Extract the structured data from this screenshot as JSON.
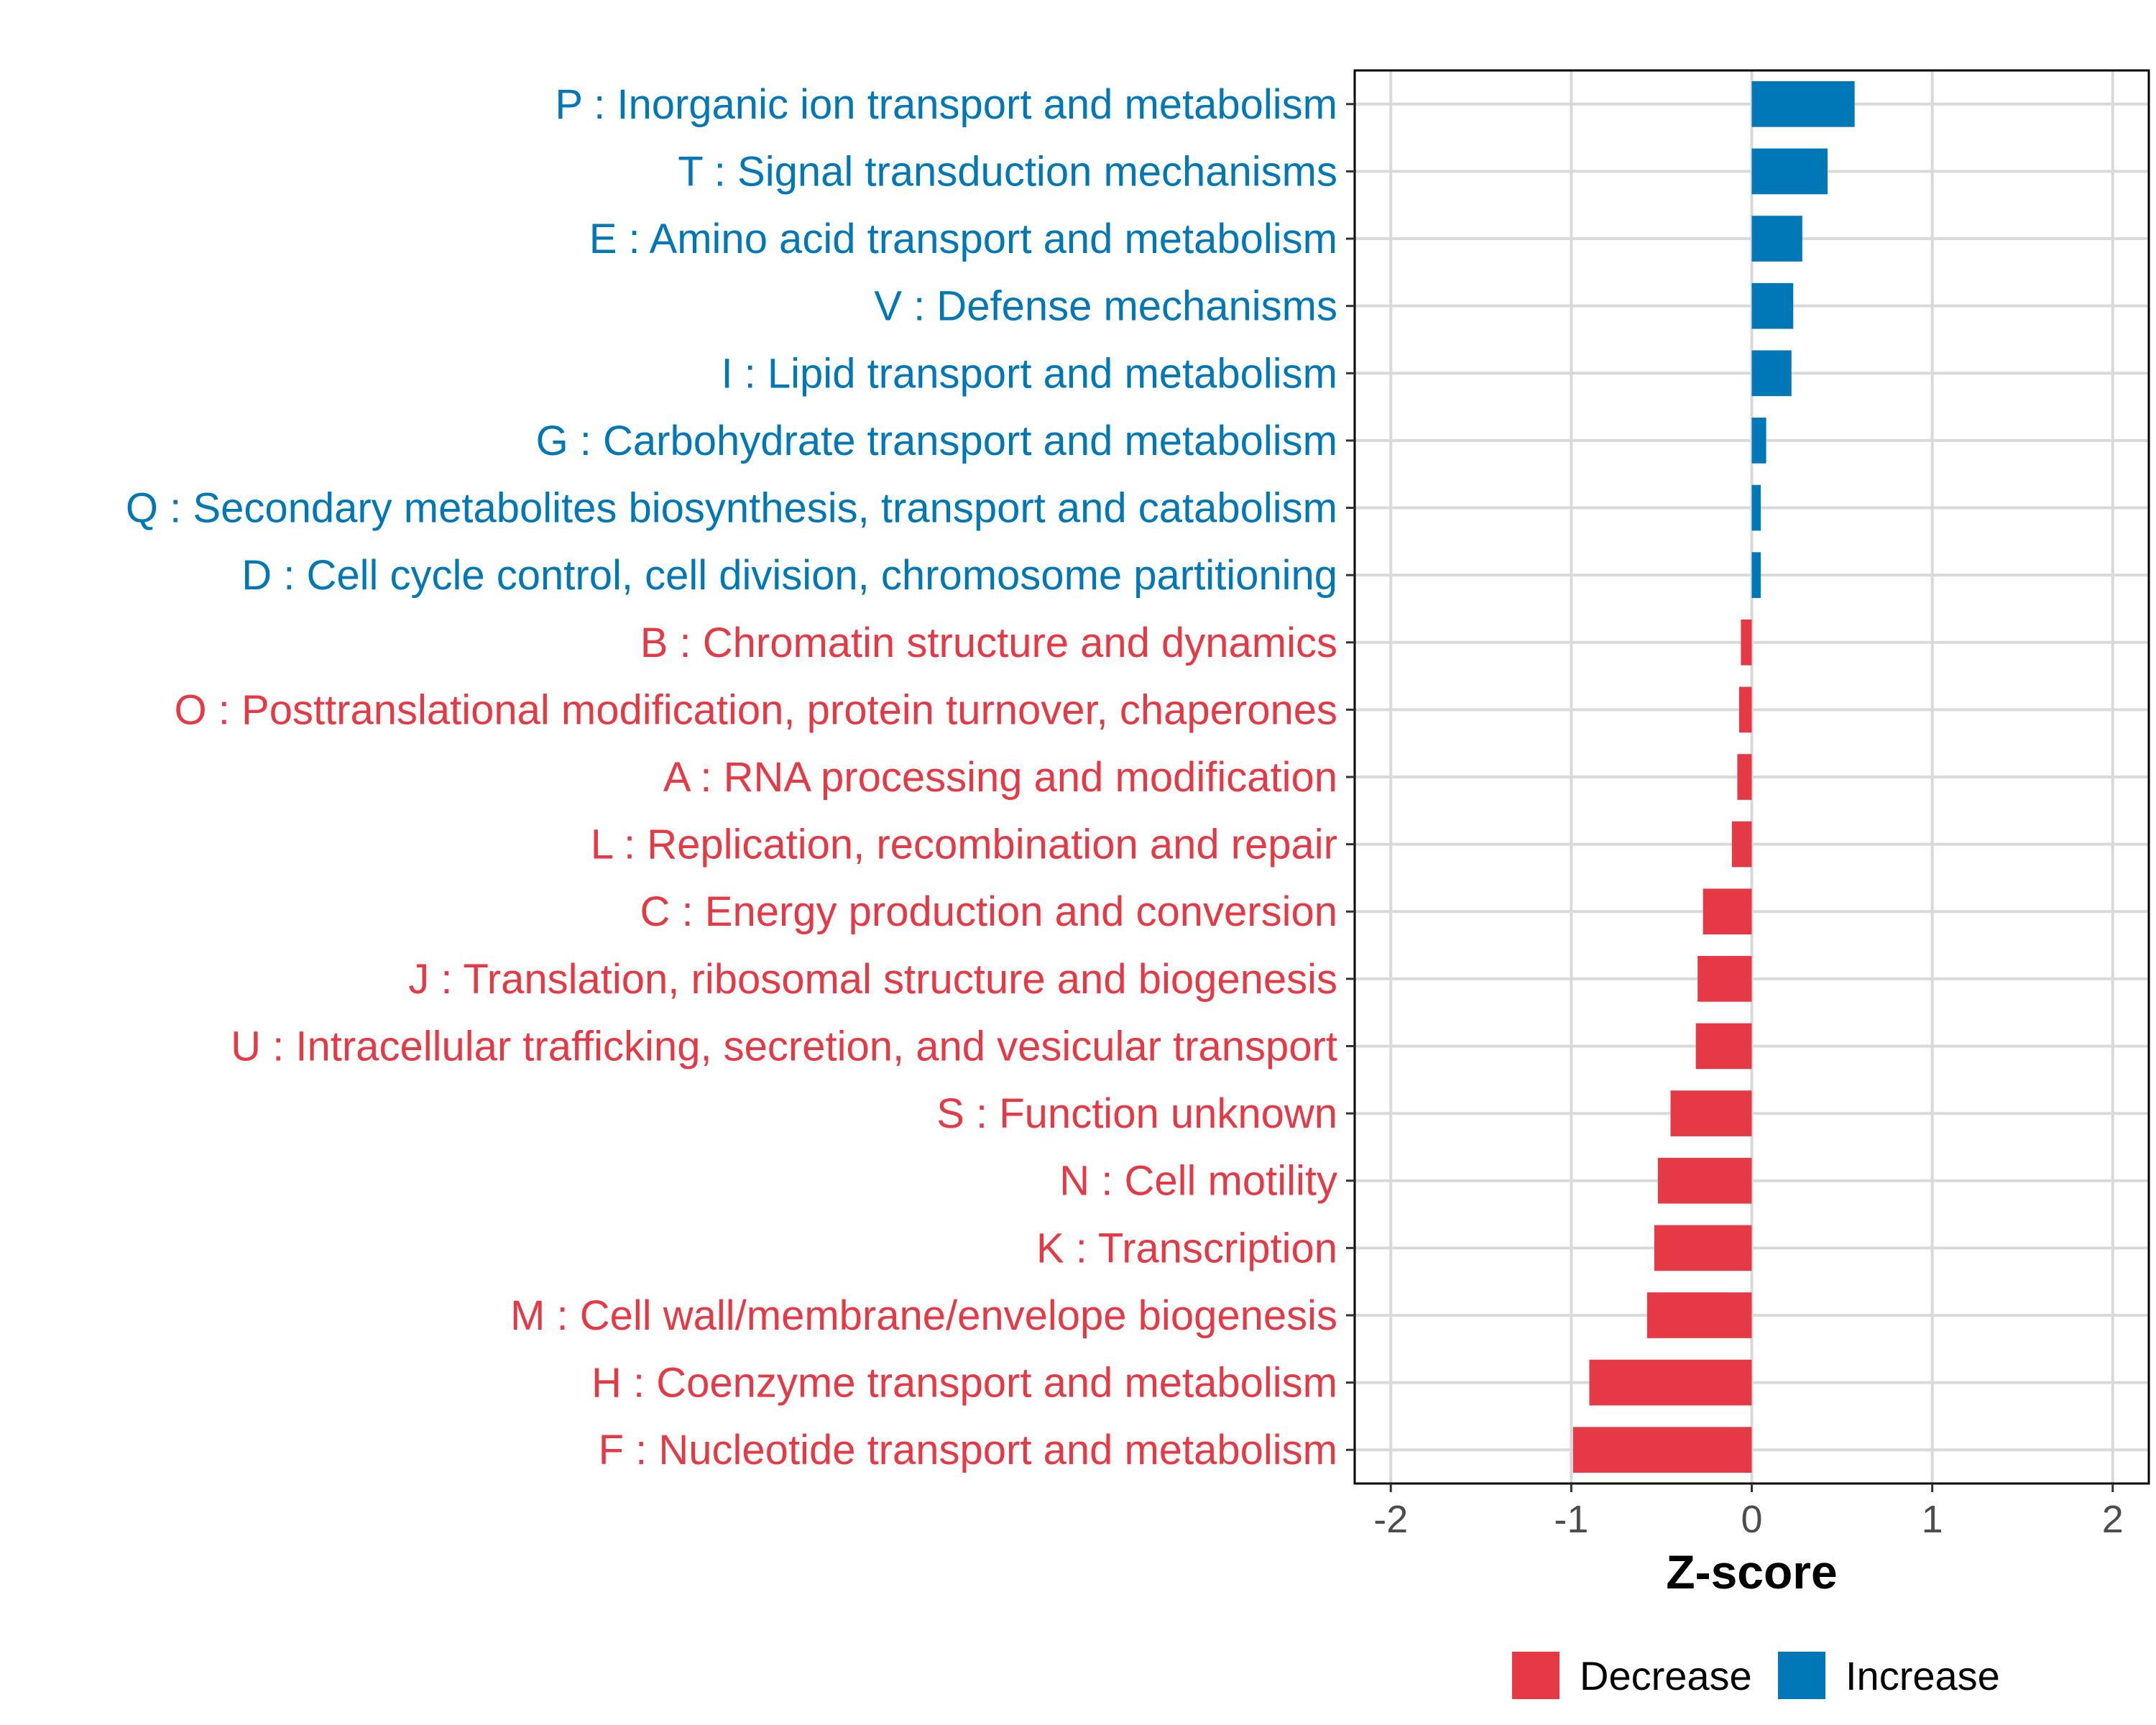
{
  "chart_data": {
    "type": "bar",
    "orientation": "horizontal",
    "xlabel": "Z-score",
    "xlim": [
      -2.2,
      2.2
    ],
    "xticks": [
      -2,
      -1,
      0,
      1,
      2
    ],
    "xtick_labels": [
      "-2",
      "-1",
      "0",
      "1",
      "2"
    ],
    "grid": true,
    "categories": [
      "P : Inorganic ion transport and metabolism",
      "T : Signal transduction mechanisms",
      "E : Amino acid transport and metabolism",
      "V : Defense mechanisms",
      "I : Lipid transport and metabolism",
      "G : Carbohydrate transport and metabolism",
      "Q : Secondary metabolites biosynthesis, transport and catabolism",
      "D : Cell cycle control, cell division, chromosome partitioning",
      "B : Chromatin structure and dynamics",
      "O : Posttranslational modification, protein turnover, chaperones",
      "A : RNA processing and modification",
      "L : Replication, recombination and repair",
      "C : Energy production and conversion",
      "J : Translation, ribosomal structure and biogenesis",
      "U : Intracellular trafficking, secretion, and vesicular transport",
      "S : Function unknown",
      "N : Cell motility",
      "K : Transcription",
      "M : Cell wall/membrane/envelope biogenesis",
      "H : Coenzyme transport and metabolism",
      "F : Nucleotide transport and metabolism"
    ],
    "values": [
      0.57,
      0.42,
      0.28,
      0.23,
      0.22,
      0.08,
      0.05,
      0.05,
      -0.06,
      -0.07,
      -0.08,
      -0.11,
      -0.27,
      -0.3,
      -0.31,
      -0.45,
      -0.52,
      -0.54,
      -0.58,
      -0.9,
      -0.99
    ],
    "groups": [
      "Increase",
      "Increase",
      "Increase",
      "Increase",
      "Increase",
      "Increase",
      "Increase",
      "Increase",
      "Decrease",
      "Decrease",
      "Decrease",
      "Decrease",
      "Decrease",
      "Decrease",
      "Decrease",
      "Decrease",
      "Decrease",
      "Decrease",
      "Decrease",
      "Decrease",
      "Decrease"
    ],
    "legend": {
      "position": "bottom",
      "entries": [
        {
          "label": "Decrease",
          "color": "#E63946"
        },
        {
          "label": "Increase",
          "color": "#0077B6"
        }
      ]
    },
    "colors": {
      "Decrease": "#E63946",
      "Increase": "#0077B6"
    }
  }
}
